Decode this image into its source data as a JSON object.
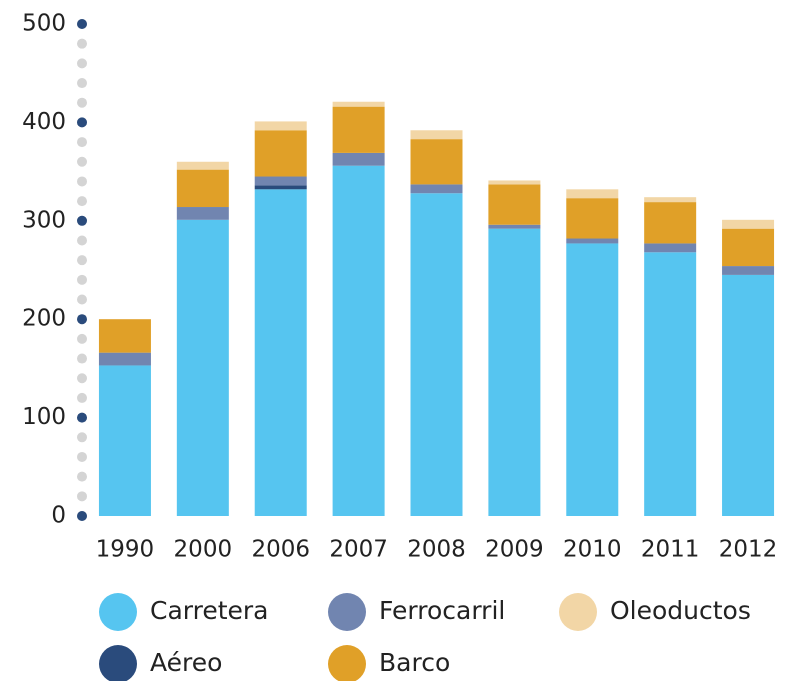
{
  "chart_data": {
    "type": "stacked_bar",
    "categories": [
      "1990",
      "2000",
      "2006",
      "2007",
      "2008",
      "2009",
      "2010",
      "2011",
      "2012"
    ],
    "series": [
      {
        "name": "Carretera",
        "color": "#56c5f0",
        "values": [
          153,
          301,
          332,
          356,
          328,
          292,
          277,
          268,
          245
        ]
      },
      {
        "name": "Aéreo",
        "color": "#2a4b7c",
        "values": [
          0,
          0,
          4,
          0,
          0,
          0,
          0,
          0,
          0
        ]
      },
      {
        "name": "Ferrocarril",
        "color": "#7185b0",
        "values": [
          13,
          13,
          9,
          13,
          9,
          4,
          5,
          9,
          9
        ]
      },
      {
        "name": "Barco",
        "color": "#e0a028",
        "values": [
          34,
          38,
          47,
          47,
          46,
          41,
          41,
          42,
          38
        ]
      },
      {
        "name": "Oleoductos",
        "color": "#f2d6a6",
        "values": [
          0,
          8,
          9,
          5,
          9,
          4,
          9,
          5,
          9
        ]
      }
    ],
    "ylim": [
      0,
      500
    ],
    "yticks": [
      0,
      100,
      200,
      300,
      400,
      500
    ]
  }
}
